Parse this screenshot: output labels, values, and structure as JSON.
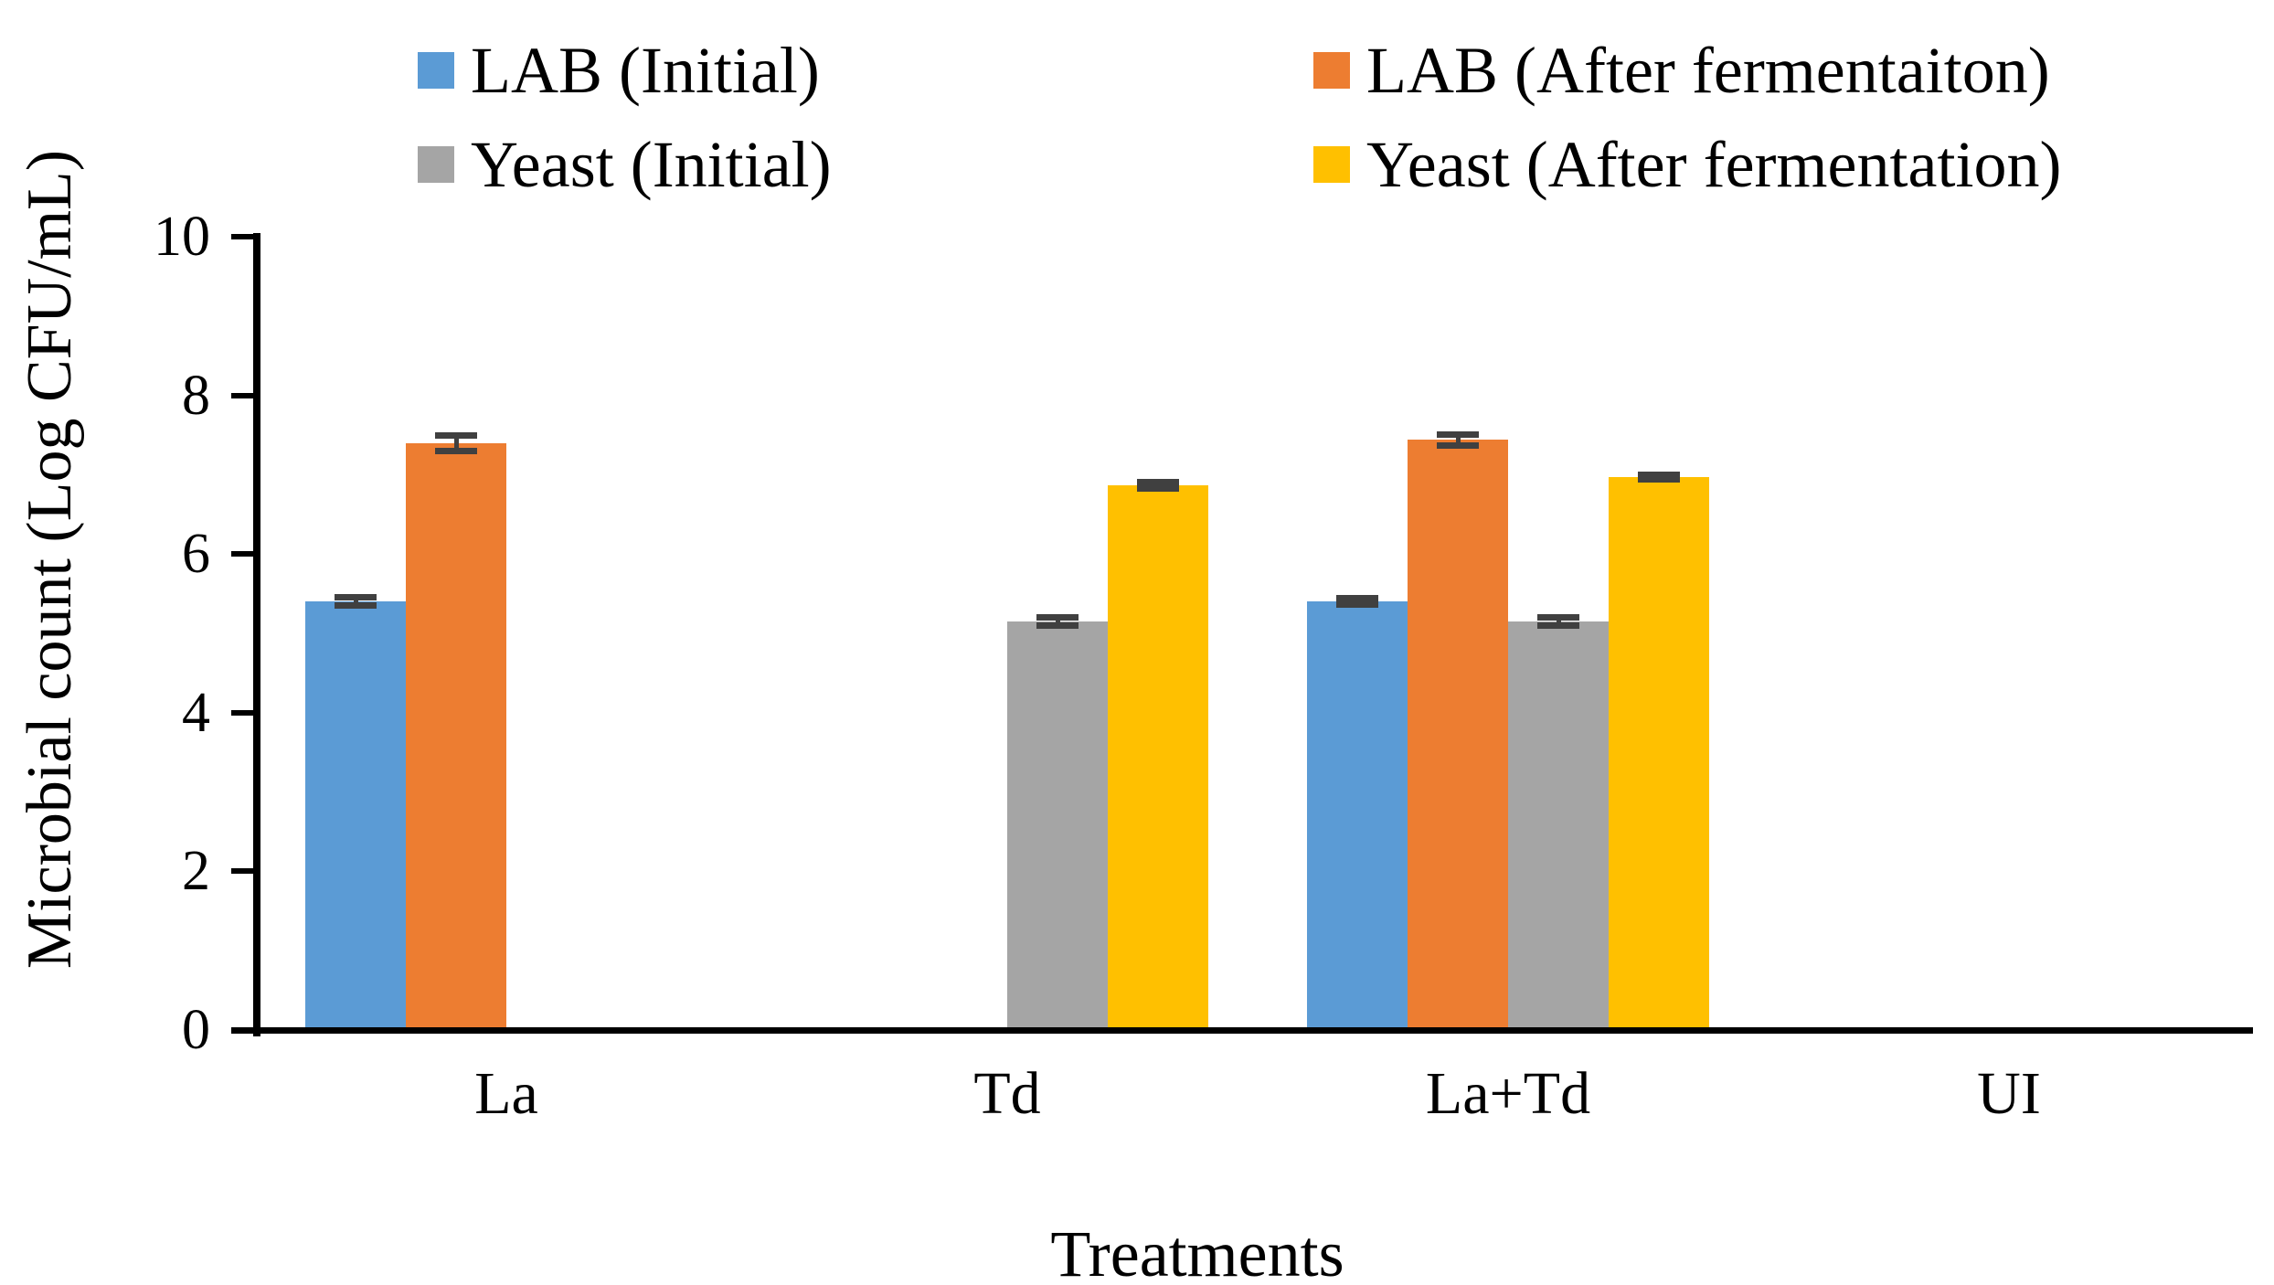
{
  "figure": {
    "background": "#ffffff"
  },
  "chart_data": {
    "type": "bar",
    "title": "",
    "xlabel": "Treatments",
    "ylabel": "Microbial count (Log CFU/mL)",
    "ylim": [
      0,
      10
    ],
    "yticks": [
      0,
      2,
      4,
      6,
      8,
      10
    ],
    "categories": [
      "La",
      "Td",
      "La+Td",
      "UI"
    ],
    "series": [
      {
        "name": "LAB (Initial)",
        "color": "#5B9BD5",
        "values": [
          5.4,
          0,
          5.4,
          0
        ],
        "errors": [
          0.05,
          0,
          0.04,
          0
        ]
      },
      {
        "name": "LAB (After fermentaiton)",
        "color": "#ED7D31",
        "values": [
          7.4,
          0,
          7.44,
          0
        ],
        "errors": [
          0.1,
          0,
          0.07,
          0
        ]
      },
      {
        "name": "Yeast (Initial)",
        "color": "#A5A5A5",
        "values": [
          0,
          5.15,
          5.15,
          0
        ],
        "errors": [
          0,
          0.05,
          0.05,
          0
        ]
      },
      {
        "name": "Yeast (After fermentation)",
        "color": "#FFC000",
        "values": [
          0,
          6.87,
          6.97,
          0
        ],
        "errors": [
          0,
          0.04,
          0.03,
          0
        ]
      }
    ],
    "legend_position": "top",
    "legend_columns": 2,
    "grid": false,
    "error_bar_color": "#404040",
    "axis_color": "#000000"
  }
}
